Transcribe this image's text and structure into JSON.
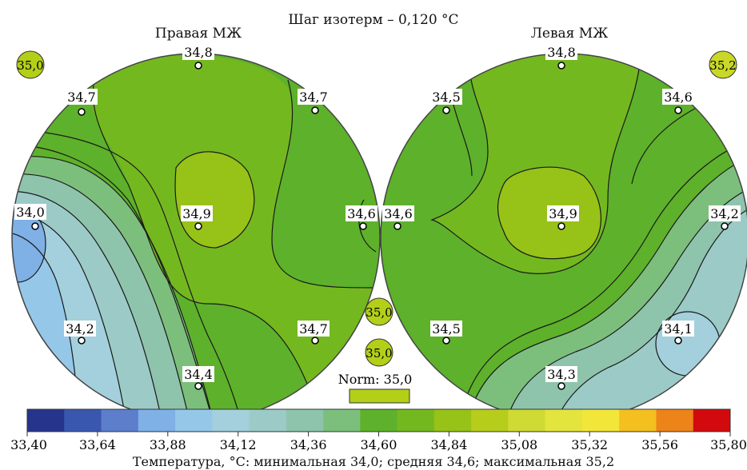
{
  "header": {
    "title": "Шаг изотерм – 0,120 °C",
    "right_label": "Правая МЖ",
    "left_label": "Левая МЖ"
  },
  "corner_badges": {
    "right": "35,0",
    "left": "35,2"
  },
  "right_breast": {
    "points": [
      {
        "id": "top",
        "value": "34,8"
      },
      {
        "id": "upper-left",
        "value": "34,7"
      },
      {
        "id": "upper-right",
        "value": "34,7"
      },
      {
        "id": "left",
        "value": "34,0"
      },
      {
        "id": "center",
        "value": "34,9"
      },
      {
        "id": "right",
        "value": "34,6"
      },
      {
        "id": "lower-left",
        "value": "34,2"
      },
      {
        "id": "lower-right",
        "value": "34,7"
      },
      {
        "id": "bottom",
        "value": "34,4"
      }
    ]
  },
  "left_breast": {
    "points": [
      {
        "id": "top",
        "value": "34,8"
      },
      {
        "id": "upper-left",
        "value": "34,5"
      },
      {
        "id": "upper-right",
        "value": "34,6"
      },
      {
        "id": "left",
        "value": "34,6"
      },
      {
        "id": "center",
        "value": "34,9"
      },
      {
        "id": "right",
        "value": "34,2"
      },
      {
        "id": "lower-left",
        "value": "34,5"
      },
      {
        "id": "lower-right",
        "value": "34,1"
      },
      {
        "id": "bottom",
        "value": "34,3"
      }
    ]
  },
  "middle_badges": [
    "35,0",
    "35,0"
  ],
  "norm": {
    "label": "Norm: 35,0",
    "color": "#b3cf18"
  },
  "scale": {
    "colors": [
      "#26348c",
      "#3a57b0",
      "#5c7ecb",
      "#7fb0e6",
      "#95c8e8",
      "#a3d0dc",
      "#9ccbc7",
      "#8fc4ac",
      "#7cbf7c",
      "#5eb12a",
      "#74b820",
      "#97c218",
      "#b7cd1c",
      "#cfdb34",
      "#e3e43e",
      "#f3e63a",
      "#f3c01f",
      "#ec8419",
      "#d20a0e"
    ],
    "ticks": [
      "33,40",
      "33,64",
      "33,88",
      "34,12",
      "34,36",
      "34,60",
      "34,84",
      "35,08",
      "35,32",
      "35,56",
      "35,80"
    ]
  },
  "footer": "Температура, °C: минимальная 34,0; средняя 34,6; максимальная 35,2"
}
